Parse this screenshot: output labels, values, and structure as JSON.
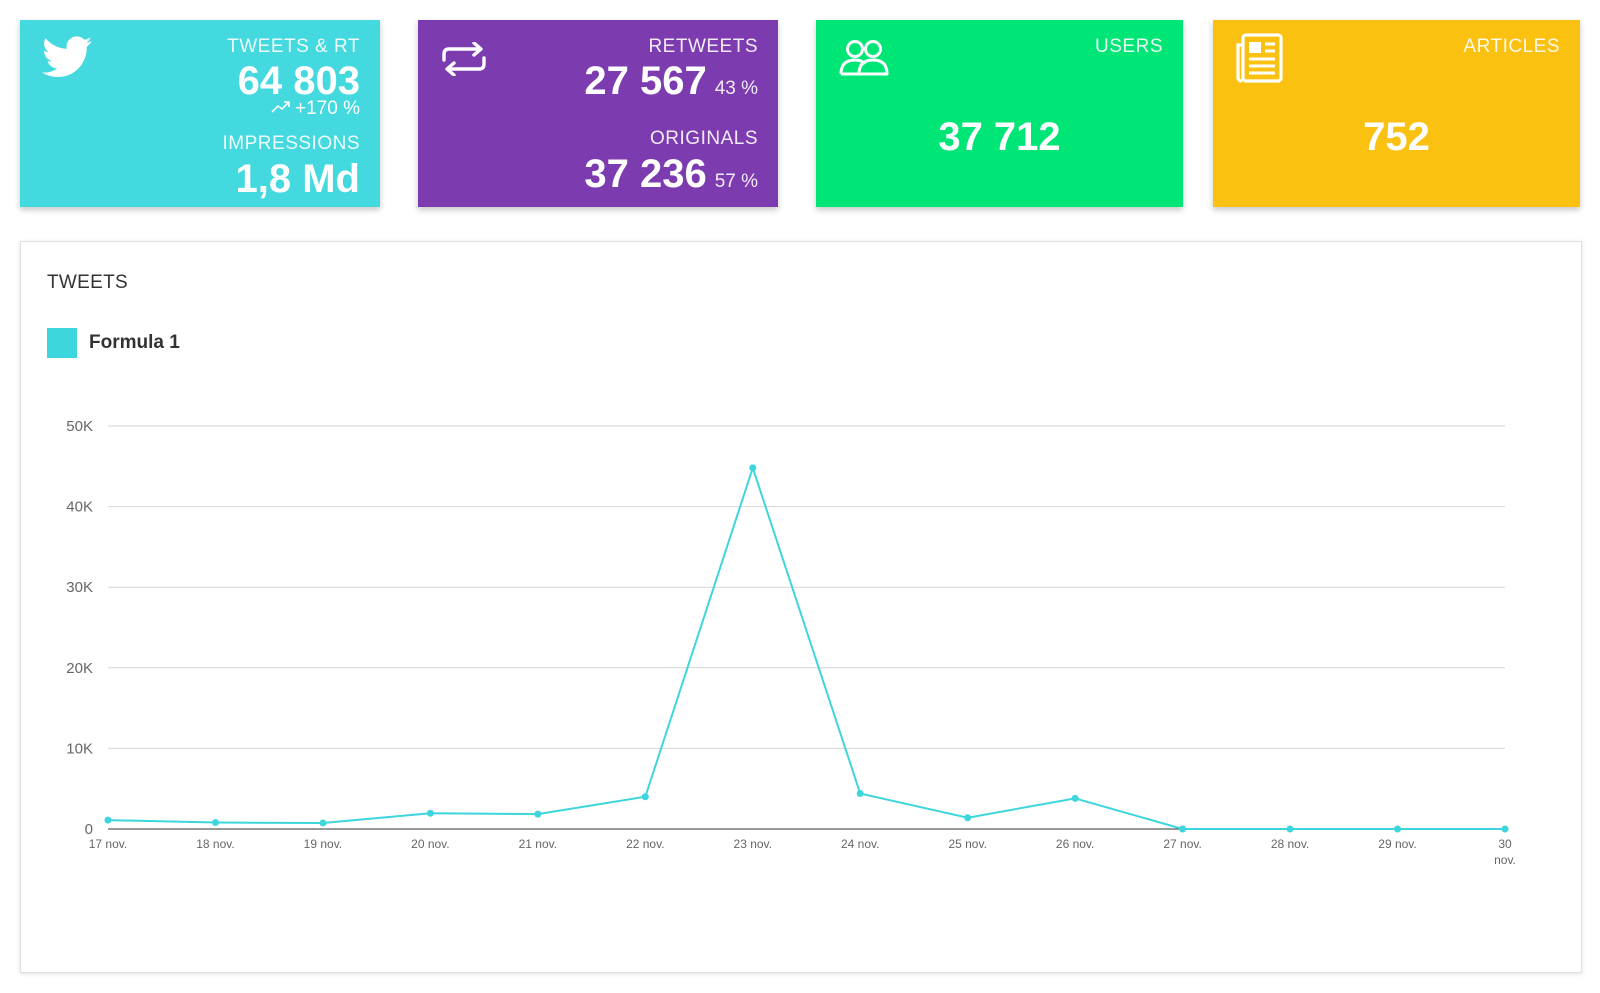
{
  "colors": {
    "tweets_card": "#43D9DE",
    "retweets_card": "#7D3BB0",
    "users_card": "#00E676",
    "articles_card": "#FBC111",
    "series_line": "#3DD6DC"
  },
  "cards": {
    "tweets": {
      "icon": "twitter-bird-icon",
      "label": "TWEETS & RT",
      "value": "64 803",
      "trend_icon": "trending-up-icon",
      "trend": "+170 %",
      "label2": "IMPRESSIONS",
      "value2": "1,8 Md"
    },
    "retweets": {
      "icon": "retweet-icon",
      "label": "RETWEETS",
      "value": "27 567",
      "pct": "43 %",
      "label2": "ORIGINALS",
      "value2": "37 236",
      "pct2": "57 %"
    },
    "users": {
      "icon": "users-icon",
      "label": "USERS",
      "value": "37 712"
    },
    "articles": {
      "icon": "newspaper-icon",
      "label": "ARTICLES",
      "value": "752"
    }
  },
  "panel": {
    "title": "TWEETS",
    "legend_label": "Formula 1"
  },
  "chart_data": {
    "type": "line",
    "title": "TWEETS",
    "x": [
      "17 nov.",
      "18 nov.",
      "19 nov.",
      "20 nov.",
      "21 nov.",
      "22 nov.",
      "23 nov.",
      "24 nov.",
      "25 nov.",
      "26 nov.",
      "27 nov.",
      "28 nov.",
      "29 nov.",
      "30 nov."
    ],
    "series": [
      {
        "name": "Formula 1",
        "values": [
          1100,
          800,
          750,
          1950,
          1850,
          4000,
          44800,
          4400,
          1400,
          3800,
          0,
          0,
          0,
          0
        ]
      }
    ],
    "yticks": [
      "0",
      "10K",
      "20K",
      "30K",
      "40K",
      "50K"
    ],
    "ylim": [
      0,
      50000
    ],
    "grid": true,
    "legend_position": "top-left"
  }
}
